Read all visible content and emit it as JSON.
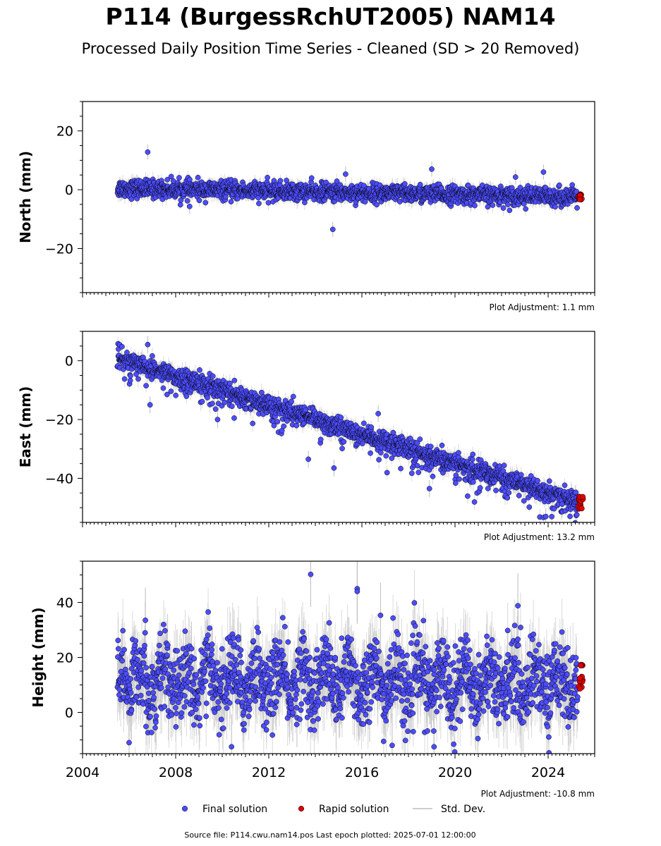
{
  "title": "P114 (BurgessRchUT2005) NAM14",
  "subtitle": "Processed Daily Position Time Series - Cleaned (SD > 20 Removed)",
  "footer": "Source file: P114.cwu.nam14.pos  Last epoch plotted: 2025-07-01 12:00:00",
  "legend": {
    "final": "Final solution",
    "rapid": "Rapid solution",
    "std": "Std. Dev."
  },
  "colors": {
    "final": "#4d4dff",
    "rapid": "#e00000",
    "std": "#bbbbbb",
    "outline": "#000000"
  },
  "chart_data": [
    {
      "type": "scatter",
      "ylabel": "North (mm)",
      "adjustment": "Plot Adjustment: 1.1 mm",
      "xlim": [
        2004,
        2026
      ],
      "ylim": [
        -35,
        30
      ],
      "yticks": [
        -20,
        0,
        20
      ],
      "trend": {
        "start_year": 2005.5,
        "start": 0.5,
        "end_year": 2025.4,
        "end": -2.5
      },
      "scatter_sd": 1.5,
      "outliers": [
        [
          2006.8,
          12.8
        ],
        [
          2014.75,
          -13.5
        ],
        [
          2019.0,
          7.0
        ],
        [
          2015.3,
          5.3
        ],
        [
          2008.6,
          -5.7
        ],
        [
          2022.6,
          4.3
        ],
        [
          2023.8,
          6.0
        ]
      ],
      "rapid": {
        "x0": 2025.3,
        "x1": 2025.5,
        "y": -2.5,
        "spread": 1.0
      }
    },
    {
      "type": "scatter",
      "ylabel": "East (mm)",
      "adjustment": "Plot Adjustment: 13.2 mm",
      "xlim": [
        2004,
        2026
      ],
      "ylim": [
        -55,
        10
      ],
      "yticks": [
        -40,
        -20,
        0
      ],
      "trend": {
        "start_year": 2005.5,
        "start": 1.0,
        "end_year": 2025.4,
        "end": -48.5
      },
      "scatter_sd": 1.7,
      "outliers": [
        [
          2006.8,
          5.5
        ],
        [
          2006.9,
          -15.0
        ],
        [
          2013.7,
          -33.5
        ],
        [
          2014.8,
          -36.5
        ],
        [
          2016.7,
          -18.0
        ],
        [
          2018.9,
          -43.5
        ],
        [
          2009.8,
          -20.0
        ],
        [
          2023.9,
          -53.0
        ]
      ],
      "rapid": {
        "x0": 2025.3,
        "x1": 2025.5,
        "y": -48.5,
        "spread": 2.5
      }
    },
    {
      "type": "scatter",
      "ylabel": "Height (mm)",
      "adjustment": "Plot Adjustment: -10.8 mm",
      "xlim": [
        2004,
        2026
      ],
      "ylim": [
        -15,
        55
      ],
      "yticks": [
        0,
        20,
        40
      ],
      "x_tick_labels": [
        "2004",
        "2008",
        "2012",
        "2016",
        "2020",
        "2024"
      ],
      "trend": {
        "start_year": 2005.5,
        "start": 12.0,
        "end_year": 2025.4,
        "end": 11.0
      },
      "scatter_sd": 7.0,
      "outliers": [
        [
          2013.8,
          50.2
        ],
        [
          2015.8,
          45.0
        ],
        [
          2015.8,
          44.0
        ],
        [
          2022.7,
          38.8
        ],
        [
          2016.8,
          35.3
        ],
        [
          2006.7,
          33.5
        ],
        [
          2010.4,
          -12.5
        ],
        [
          2019.1,
          -12.5
        ],
        [
          2006.0,
          -11.0
        ],
        [
          2017.3,
          -12.0
        ]
      ],
      "rapid": {
        "x0": 2025.3,
        "x1": 2025.5,
        "y": 13.0,
        "spread": 5.0
      }
    }
  ]
}
